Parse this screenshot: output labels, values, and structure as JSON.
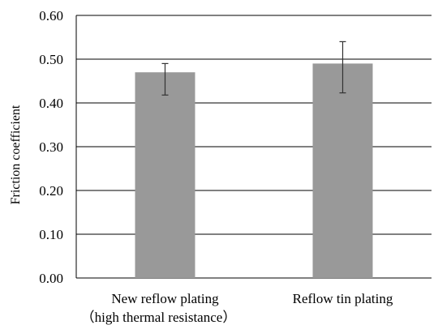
{
  "chart_data": {
    "type": "bar",
    "title": "",
    "xlabel": "",
    "ylabel": "Friction coefficient",
    "ylim": [
      0,
      0.6
    ],
    "yticks": [
      "0.00",
      "0.10",
      "0.20",
      "0.30",
      "0.40",
      "0.50",
      "0.60"
    ],
    "grid": true,
    "categories": [
      {
        "line1": "New reflow plating",
        "line2": "（high thermal resistance）"
      },
      {
        "line1": "Reflow tin plating",
        "line2": ""
      }
    ],
    "values": [
      0.47,
      0.49
    ],
    "error_low": [
      0.418,
      0.423
    ],
    "error_high": [
      0.49,
      0.54
    ],
    "colors": {
      "bar": "#999999",
      "grid": "#000000",
      "error": "#333333"
    }
  }
}
